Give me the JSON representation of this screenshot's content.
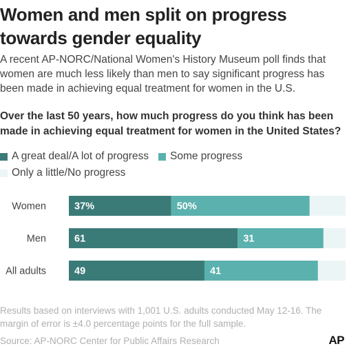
{
  "header": {
    "title_line1": "Women and men split on progress",
    "title_line2": "towards gender equality",
    "subtitle": "A recent AP-NORC/National Women's History Museum poll finds that women are much less likely than men to say significant progress has been made in achieving equal treatment for women in the U.S."
  },
  "question": "Over the last 50 years, how much progress do you think has been made in achieving equal treatment for women in the United States?",
  "colors": {
    "great_deal": "#3a7b78",
    "some": "#5bb1ad",
    "little": "#ecf5f5"
  },
  "chart_data": {
    "type": "bar",
    "orientation": "horizontal",
    "stacked": true,
    "categories": [
      "Women",
      "Men",
      "All adults"
    ],
    "series": [
      {
        "name": "A great deal/A lot of progress",
        "values": [
          37,
          61,
          49
        ],
        "labels": [
          "37%",
          "61",
          "49"
        ]
      },
      {
        "name": "Some progress",
        "values": [
          50,
          31,
          41
        ],
        "labels": [
          "50%",
          "31",
          "41"
        ]
      },
      {
        "name": "Only a little/No progress",
        "values": [
          13,
          8,
          10
        ],
        "labels": [
          "",
          "",
          ""
        ]
      }
    ],
    "xlim": [
      0,
      100
    ],
    "legend_position": "top-left",
    "grid": false
  },
  "footnote": "Results based on interviews with 1,001 U.S. adults conducted May 12-16. The margin of error is ±4.0 percentage points for the full sample.",
  "source": "Source: AP-NORC Center for Public Affairs Research",
  "logo_text": "AP"
}
